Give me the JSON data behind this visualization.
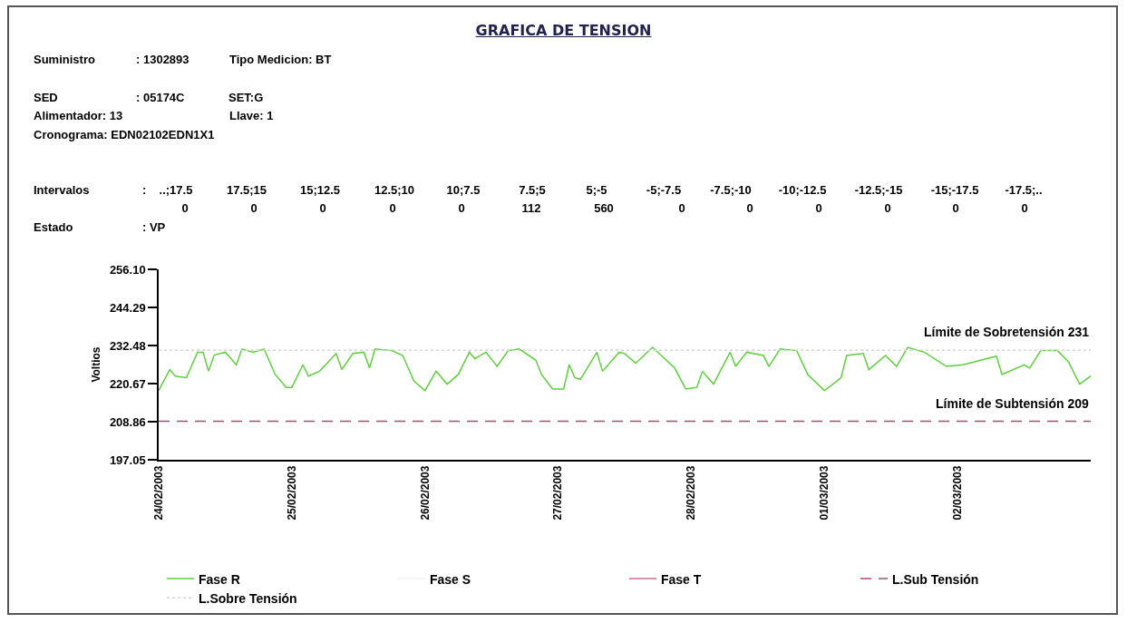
{
  "chart_data": {
    "type": "line",
    "title": "GRAFICA DE TENSION",
    "ylabel": "Voltios",
    "annotations": [
      "Suministro",
      ": 1302893",
      "Tipo Medicion: BT",
      "SED",
      ": 05174C",
      "SET:G",
      "Alimentador: 13",
      "Llave: 1",
      "Cronograma: EDN02102EDN1X1",
      "Intervalos",
      ":",
      "..;17.5",
      "17.5;15",
      "15;12.5",
      "12.5;10",
      "10;7.5",
      "7.5;5",
      "5;-5",
      "-5;-7.5",
      "-7.5;-10",
      "-10;-12.5",
      "-12.5;-15",
      "-15;-17.5",
      "-17.5;..",
      "0",
      "0",
      "0",
      "0",
      "0",
      "112",
      "560",
      "0",
      "0",
      "0",
      "0",
      "0",
      "0",
      "Estado",
      ": VP",
      {
        "text": "Límite de Sobretensión 231",
        "x": "2003-03-03T00:00",
        "y": 231
      },
      {
        "text": "Límite de Subtensión 209",
        "x": "2003-03-03T00:00",
        "y": 209
      }
    ],
    "xlim": [
      "2003-02-24T00:00",
      "2003-03-03T00:00"
    ],
    "xticks": [
      {
        "value": "2003-02-24",
        "label": "24/02/2003"
      },
      {
        "value": "2003-02-25",
        "label": "25/02/2003"
      },
      {
        "value": "2003-02-26",
        "label": "26/02/2003"
      },
      {
        "value": "2003-02-27",
        "label": "27/02/2003"
      },
      {
        "value": "2003-02-28",
        "label": "28/02/2003"
      },
      {
        "value": "2003-03-01",
        "label": "01/03/2003"
      },
      {
        "value": "2003-03-02",
        "label": "02/03/2003"
      }
    ],
    "ylim": [
      197.05,
      256.1
    ],
    "yticks": [
      197.05,
      208.86,
      220.67,
      232.48,
      244.29,
      {
        "value": 256.1,
        "label": "256.10"
      }
    ],
    "grid": false,
    "legend": "bottom",
    "marker": "none",
    "series": [
      {
        "name": "Fase R",
        "color": "#5fcf3f",
        "line_style": "solid",
        "x": [
          "2003-02-24T00:00",
          "2003-02-24T02:00",
          "2003-02-24T03:00",
          "2003-02-24T05:00",
          "2003-02-24T07:00",
          "2003-02-24T08:00",
          "2003-02-24T09:00",
          "2003-02-24T10:00",
          "2003-02-24T12:00",
          "2003-02-24T14:00",
          "2003-02-24T15:00",
          "2003-02-24T17:00",
          "2003-02-24T19:00",
          "2003-02-24T21:00",
          "2003-02-24T23:00",
          "2003-02-25T00:00",
          "2003-02-25T02:00",
          "2003-02-25T03:00",
          "2003-02-25T05:00",
          "2003-02-25T08:00",
          "2003-02-25T09:00",
          "2003-02-25T11:00",
          "2003-02-25T13:00",
          "2003-02-25T14:00",
          "2003-02-25T15:00",
          "2003-02-25T18:00",
          "2003-02-25T20:00",
          "2003-02-25T22:00",
          "2003-02-26T00:00",
          "2003-02-26T02:00",
          "2003-02-26T04:00",
          "2003-02-26T06:00",
          "2003-02-26T08:00",
          "2003-02-26T09:00",
          "2003-02-26T11:00",
          "2003-02-26T13:00",
          "2003-02-26T15:00",
          "2003-02-26T17:00",
          "2003-02-26T20:00",
          "2003-02-26T21:00",
          "2003-02-26T23:00",
          "2003-02-27T01:00",
          "2003-02-27T02:00",
          "2003-02-27T03:00",
          "2003-02-27T04:00",
          "2003-02-27T07:00",
          "2003-02-27T08:00",
          "2003-02-27T11:00",
          "2003-02-27T12:00",
          "2003-02-27T14:00",
          "2003-02-27T17:00",
          "2003-02-27T21:00",
          "2003-02-27T23:00",
          "2003-02-28T01:00",
          "2003-02-28T02:00",
          "2003-02-28T04:00",
          "2003-02-28T07:00",
          "2003-02-28T08:00",
          "2003-02-28T10:00",
          "2003-02-28T13:00",
          "2003-02-28T14:00",
          "2003-02-28T16:00",
          "2003-02-28T19:00",
          "2003-02-28T21:00",
          "2003-03-01T00:00",
          "2003-03-01T03:00",
          "2003-03-01T04:00",
          "2003-03-01T07:00",
          "2003-03-01T08:00",
          "2003-03-01T11:00",
          "2003-03-01T13:00",
          "2003-03-01T15:00",
          "2003-03-01T18:00",
          "2003-03-01T22:00",
          "2003-03-02T01:00",
          "2003-03-02T07:00",
          "2003-03-02T08:00",
          "2003-03-02T12:00",
          "2003-03-02T13:00",
          "2003-03-02T15:00",
          "2003-03-02T18:00",
          "2003-03-02T20:00",
          "2003-03-02T22:00",
          "2003-03-03T00:00"
        ],
        "values": [
          218.5,
          225.0,
          223.0,
          222.5,
          230.4,
          230.4,
          224.5,
          229.5,
          230.4,
          226.5,
          231.4,
          230.4,
          231.4,
          223.5,
          219.5,
          219.5,
          226.5,
          223.0,
          224.5,
          230.0,
          225.0,
          230.0,
          230.4,
          225.5,
          231.4,
          230.9,
          229.4,
          221.5,
          218.5,
          224.5,
          220.5,
          223.5,
          230.4,
          228.4,
          230.4,
          226.0,
          230.9,
          231.4,
          227.9,
          223.5,
          219.0,
          219.0,
          226.5,
          222.5,
          222.0,
          230.4,
          224.5,
          230.4,
          230.0,
          227.0,
          231.9,
          225.5,
          219.0,
          219.5,
          224.5,
          220.5,
          230.4,
          226.0,
          230.4,
          229.4,
          226.0,
          231.4,
          230.9,
          223.5,
          218.5,
          222.5,
          229.4,
          230.0,
          225.0,
          229.4,
          226.0,
          231.9,
          230.4,
          226.0,
          226.5,
          229.2,
          223.5,
          226.5,
          225.5,
          230.9,
          230.9,
          227.4,
          220.5,
          223.0
        ]
      },
      {
        "name": "Fase S",
        "color": "#f2f2f2",
        "line_style": "solid"
      },
      {
        "name": "Fase T",
        "color": "#c8709a",
        "line_style": "solid"
      },
      {
        "name": "L.Sub Tensión",
        "color": "#a8506a",
        "line_style": "dashed",
        "x": [
          "2003-02-24T00:00",
          "2003-03-03T00:00"
        ],
        "values": [
          209,
          209
        ]
      },
      {
        "name": "L.Sobre Tensión",
        "color": "#d4d4d4",
        "line_style": "dotted",
        "x": [
          "2003-02-24T00:00",
          "2003-03-03T00:00"
        ],
        "values": [
          231,
          231
        ]
      }
    ]
  }
}
